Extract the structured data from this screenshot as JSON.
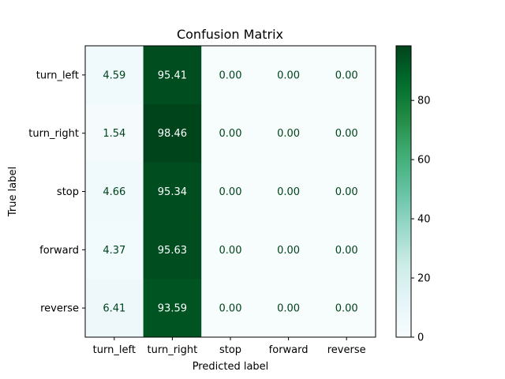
{
  "chart_data": {
    "type": "heatmap",
    "title": "Confusion Matrix",
    "xlabel": "Predicted label",
    "ylabel": "True label",
    "x_categories": [
      "turn_left",
      "turn_right",
      "stop",
      "forward",
      "reverse"
    ],
    "y_categories": [
      "turn_left",
      "turn_right",
      "stop",
      "forward",
      "reverse"
    ],
    "values": [
      [
        4.59,
        95.41,
        0.0,
        0.0,
        0.0
      ],
      [
        1.54,
        98.46,
        0.0,
        0.0,
        0.0
      ],
      [
        4.66,
        95.34,
        0.0,
        0.0,
        0.0
      ],
      [
        4.37,
        95.63,
        0.0,
        0.0,
        0.0
      ],
      [
        6.41,
        93.59,
        0.0,
        0.0,
        0.0
      ]
    ],
    "value_format": "2 decimals",
    "colormap": "BuGn",
    "colorbar": {
      "range": [
        0,
        98.46
      ],
      "ticks": [
        0,
        20,
        40,
        60,
        80
      ]
    },
    "colors": {
      "dark_text": "#00441b",
      "light_text": "#ffffff"
    }
  }
}
